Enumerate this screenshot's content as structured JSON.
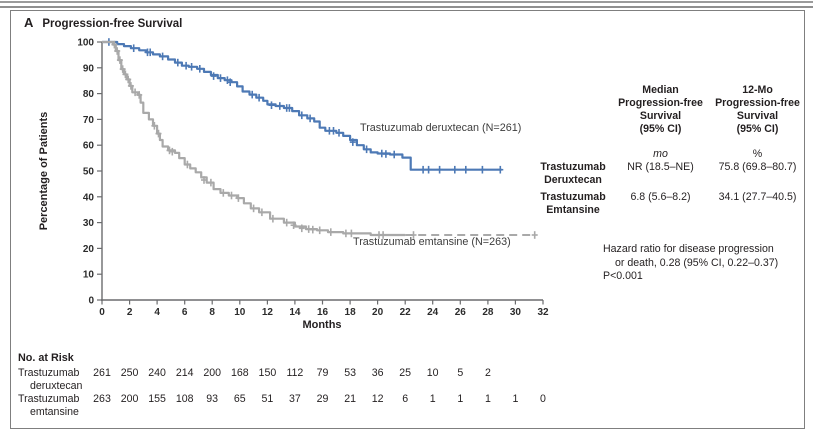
{
  "panel": {
    "letter": "A",
    "title": "Progression-free Survival"
  },
  "chart_data": {
    "type": "line",
    "subtype": "kaplan-meier-step",
    "title": "Progression-free Survival",
    "xlabel": "Months",
    "ylabel": "Percentage of Patients",
    "xlim": [
      0,
      32
    ],
    "ylim": [
      0,
      100
    ],
    "xticks": [
      0,
      2,
      4,
      6,
      8,
      10,
      12,
      14,
      16,
      18,
      20,
      22,
      24,
      26,
      28,
      30,
      32
    ],
    "yticks": [
      0,
      10,
      20,
      30,
      40,
      50,
      60,
      70,
      80,
      90,
      100
    ],
    "grid": false,
    "legend_position": "inline-curve-labels",
    "axis_color": "#6b6c6e",
    "series": [
      {
        "name": "Trastuzumab deruxtecan",
        "n": 261,
        "label": "Trastuzumab deruxtecan (N=261)",
        "color": "#4d79b5",
        "linestyle": "solid",
        "steps": [
          [
            0,
            100
          ],
          [
            1.1,
            99.2
          ],
          [
            1.6,
            98.4
          ],
          [
            2.1,
            97.6
          ],
          [
            2.7,
            96.8
          ],
          [
            3.2,
            96
          ],
          [
            3.7,
            95.2
          ],
          [
            4.2,
            94.4
          ],
          [
            4.8,
            93.2
          ],
          [
            5.3,
            92
          ],
          [
            5.8,
            90.8
          ],
          [
            6.3,
            90.4
          ],
          [
            6.9,
            89.6
          ],
          [
            7.4,
            88.4
          ],
          [
            7.9,
            87.2
          ],
          [
            8.4,
            86
          ],
          [
            8.9,
            85.2
          ],
          [
            9.4,
            84.4
          ],
          [
            9.8,
            82.8
          ],
          [
            10.2,
            80.8
          ],
          [
            10.7,
            79.6
          ],
          [
            11.2,
            78.4
          ],
          [
            11.7,
            77.2
          ],
          [
            12,
            75.8
          ],
          [
            12.6,
            75.2
          ],
          [
            13.2,
            74.4
          ],
          [
            13.8,
            73.2
          ],
          [
            14.3,
            71.6
          ],
          [
            14.9,
            70.4
          ],
          [
            15.4,
            69.2
          ],
          [
            15.8,
            66.8
          ],
          [
            16.2,
            65.6
          ],
          [
            17,
            64.8
          ],
          [
            17.5,
            63.6
          ],
          [
            18,
            62
          ],
          [
            18.5,
            60
          ],
          [
            19,
            58.4
          ],
          [
            19.5,
            57.2
          ],
          [
            20,
            56.8
          ],
          [
            20.9,
            56.4
          ],
          [
            21.8,
            55.2
          ],
          [
            22.4,
            50.5
          ],
          [
            29,
            50.5
          ]
        ],
        "censors": [
          [
            0.5,
            100
          ],
          [
            2.3,
            97.6
          ],
          [
            3.3,
            96
          ],
          [
            3.5,
            96
          ],
          [
            4.4,
            94.4
          ],
          [
            5.5,
            92
          ],
          [
            6.1,
            90.8
          ],
          [
            6.5,
            90.4
          ],
          [
            7.1,
            89.6
          ],
          [
            8.1,
            86.8
          ],
          [
            8.6,
            86
          ],
          [
            9.1,
            85.2
          ],
          [
            9.3,
            84.4
          ],
          [
            10.9,
            79.6
          ],
          [
            11.4,
            78.4
          ],
          [
            12.3,
            75.5
          ],
          [
            12.9,
            75.2
          ],
          [
            13.4,
            74.4
          ],
          [
            13.6,
            74.4
          ],
          [
            14.5,
            71.6
          ],
          [
            15.1,
            70.4
          ],
          [
            16.5,
            65.6
          ],
          [
            16.8,
            65.6
          ],
          [
            17.2,
            64.8
          ],
          [
            18.2,
            61.2
          ],
          [
            19.2,
            58.4
          ],
          [
            20.3,
            56.8
          ],
          [
            20.6,
            56.6
          ],
          [
            21.2,
            56.4
          ],
          [
            23.3,
            50.5
          ],
          [
            23.7,
            50.5
          ],
          [
            24.5,
            50.5
          ],
          [
            25.6,
            50.5
          ],
          [
            26.4,
            50.5
          ],
          [
            27.6,
            50.5
          ],
          [
            28.9,
            50.5
          ]
        ]
      },
      {
        "name": "Trastuzumab emtansine",
        "n": 263,
        "label": "Trastuzumab emtansine (N=263)",
        "color": "#a9a9a9",
        "linestyle": "solid-then-dashed",
        "dash_from": 22,
        "steps": [
          [
            0,
            100
          ],
          [
            0.8,
            99
          ],
          [
            1.0,
            96.5
          ],
          [
            1.2,
            93
          ],
          [
            1.4,
            89.5
          ],
          [
            1.6,
            87.5
          ],
          [
            1.8,
            85.5
          ],
          [
            2.0,
            83
          ],
          [
            2.2,
            80.5
          ],
          [
            2.6,
            79.5
          ],
          [
            2.8,
            76.5
          ],
          [
            3.0,
            72.5
          ],
          [
            3.4,
            70
          ],
          [
            3.7,
            67.5
          ],
          [
            4.0,
            64.5
          ],
          [
            4.2,
            62
          ],
          [
            4.4,
            59.5
          ],
          [
            4.8,
            58
          ],
          [
            5.3,
            57
          ],
          [
            5.6,
            55
          ],
          [
            6.0,
            52.5
          ],
          [
            6.4,
            51
          ],
          [
            6.8,
            49.5
          ],
          [
            7.2,
            47.5
          ],
          [
            7.6,
            45.5
          ],
          [
            8.1,
            43
          ],
          [
            8.6,
            41.5
          ],
          [
            9.2,
            40.5
          ],
          [
            9.8,
            39.5
          ],
          [
            10.3,
            37.5
          ],
          [
            10.8,
            35.5
          ],
          [
            11.4,
            34
          ],
          [
            12.2,
            31.5
          ],
          [
            13.2,
            30
          ],
          [
            14.0,
            28.5
          ],
          [
            14.8,
            27.5
          ],
          [
            15.6,
            27
          ],
          [
            16.4,
            26.3
          ],
          [
            17.5,
            25.8
          ],
          [
            19.5,
            25.2
          ],
          [
            31.4,
            25.2
          ]
        ],
        "censors": [
          [
            0.9,
            99
          ],
          [
            1.1,
            96.5
          ],
          [
            1.3,
            93
          ],
          [
            1.5,
            89.5
          ],
          [
            1.7,
            87.5
          ],
          [
            1.9,
            85.5
          ],
          [
            2.1,
            83
          ],
          [
            2.4,
            80.5
          ],
          [
            2.7,
            79.5
          ],
          [
            3.8,
            67.5
          ],
          [
            4.1,
            64.5
          ],
          [
            4.9,
            58
          ],
          [
            5.1,
            57.5
          ],
          [
            6.2,
            52.5
          ],
          [
            7.4,
            46.5
          ],
          [
            7.9,
            45.5
          ],
          [
            8.8,
            41.5
          ],
          [
            9.4,
            40.5
          ],
          [
            9.9,
            39.5
          ],
          [
            11.0,
            35.5
          ],
          [
            11.6,
            34
          ],
          [
            12.4,
            31.5
          ],
          [
            13.4,
            30
          ],
          [
            13.9,
            29
          ],
          [
            14.5,
            27.8
          ],
          [
            15.0,
            27.5
          ],
          [
            15.3,
            27.3
          ],
          [
            15.8,
            27
          ],
          [
            16.6,
            26.3
          ],
          [
            17.7,
            25.8
          ],
          [
            18.1,
            25.8
          ],
          [
            20.1,
            25.2
          ],
          [
            20.4,
            25.2
          ],
          [
            22.6,
            25.2
          ],
          [
            31.4,
            25.2
          ]
        ]
      }
    ]
  },
  "stats_table": {
    "col1_header": "Median\nProgression-free\nSurvival\n(95% CI)",
    "col2_header": "12-Mo\nProgression-free\nSurvival\n(95% CI)",
    "col1_unit": "mo",
    "col2_unit": "%",
    "rows": [
      {
        "label": "Trastuzumab\nDeruxtecan",
        "median_pfs": "NR (18.5–NE)",
        "pfs_12mo": "75.8 (69.8–80.7)"
      },
      {
        "label": "Trastuzumab\nEmtansine",
        "median_pfs": "6.8 (5.6–8.2)",
        "pfs_12mo": "34.1 (27.7–40.5)"
      }
    ]
  },
  "annotations": {
    "hazard_line1": "Hazard ratio for disease progression",
    "hazard_line2": "or death, 0.28 (95% CI, 0.22–0.37)",
    "p_value": "P<0.001"
  },
  "risk_table": {
    "title": "No. at Risk",
    "rows": [
      {
        "label_line1": "Trastuzumab",
        "label_line2": "deruxtecan",
        "values": [
          261,
          250,
          240,
          214,
          200,
          168,
          150,
          112,
          79,
          53,
          36,
          25,
          10,
          5,
          2
        ]
      },
      {
        "label_line1": "Trastuzumab",
        "label_line2": "emtansine",
        "values": [
          263,
          200,
          155,
          108,
          93,
          65,
          51,
          37,
          29,
          21,
          12,
          6,
          1,
          1,
          1,
          1,
          0
        ]
      }
    ]
  }
}
